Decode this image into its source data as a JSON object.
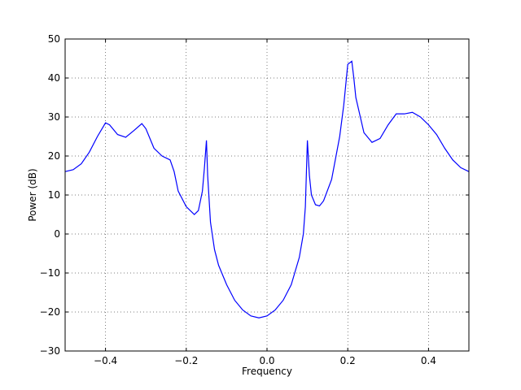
{
  "chart_data": {
    "type": "line",
    "x_label": "Frequency",
    "y_label": "Power (dB)",
    "x": [
      -0.5,
      -0.48,
      -0.46,
      -0.44,
      -0.42,
      -0.4,
      -0.39,
      -0.37,
      -0.35,
      -0.33,
      -0.31,
      -0.3,
      -0.28,
      -0.26,
      -0.24,
      -0.23,
      -0.22,
      -0.2,
      -0.18,
      -0.17,
      -0.16,
      -0.155,
      -0.15,
      -0.147,
      -0.14,
      -0.13,
      -0.12,
      -0.1,
      -0.08,
      -0.06,
      -0.04,
      -0.02,
      0.0,
      0.02,
      0.04,
      0.06,
      0.08,
      0.09,
      0.095,
      0.1,
      0.105,
      0.11,
      0.12,
      0.13,
      0.14,
      0.16,
      0.18,
      0.19,
      0.2,
      0.21,
      0.215,
      0.22,
      0.24,
      0.26,
      0.28,
      0.3,
      0.32,
      0.34,
      0.36,
      0.38,
      0.4,
      0.42,
      0.44,
      0.46,
      0.48,
      0.5
    ],
    "series": [
      {
        "color": "#0000ff",
        "values": [
          16,
          16.5,
          18,
          21,
          25,
          28.5,
          28,
          25.5,
          24.8,
          26.5,
          28.3,
          27,
          22,
          20,
          19,
          16,
          11,
          7,
          5,
          6,
          11,
          17,
          24,
          15,
          3,
          -4,
          -8,
          -13,
          -17,
          -19.5,
          -21,
          -21.5,
          -21,
          -19.5,
          -17,
          -13,
          -6,
          0,
          7,
          24,
          15,
          10,
          7.5,
          7.2,
          8.5,
          14,
          25,
          33,
          43.5,
          44.3,
          40,
          35,
          26,
          23.5,
          24.5,
          28,
          30.8,
          30.8,
          31.2,
          30,
          28,
          25.5,
          22,
          19,
          17,
          16
        ]
      }
    ],
    "xlim": [
      -0.5,
      0.5
    ],
    "xticks": [
      {
        "value": -0.4,
        "label": "−0.4"
      },
      {
        "value": -0.2,
        "label": "−0.2"
      },
      {
        "value": 0,
        "label": "0.0"
      },
      {
        "value": 0.2,
        "label": "0.2"
      },
      {
        "value": 0.4,
        "label": "0.4"
      }
    ],
    "ylim": [
      -30,
      50
    ],
    "yticks": [
      {
        "value": -30,
        "label": "−30"
      },
      {
        "value": -20,
        "label": "−20"
      },
      {
        "value": -10,
        "label": "−10"
      },
      0,
      10,
      20,
      30,
      40,
      50
    ],
    "grid": true
  }
}
